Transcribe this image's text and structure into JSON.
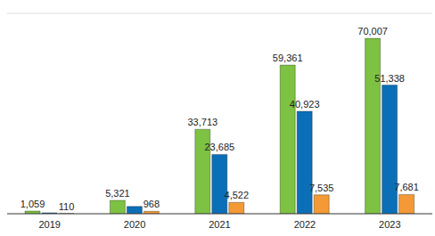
{
  "chart_data": {
    "type": "bar",
    "categories": [
      "2019",
      "2020",
      "2021",
      "2022",
      "2023"
    ],
    "series": [
      {
        "color": "#7dc242",
        "values": [
          1059,
          5321,
          33713,
          59361,
          70007
        ],
        "value_labels": [
          "1,059",
          "5,321",
          "33,713",
          "59,361",
          "70,007"
        ]
      },
      {
        "color": "#0b6fb8",
        "values": [
          400,
          2900,
          23685,
          40923,
          51338
        ],
        "value_labels": [
          null,
          null,
          "23,685",
          "40,923",
          "51,338"
        ]
      },
      {
        "color": "#f39a36",
        "values": [
          110,
          968,
          4522,
          7535,
          7681
        ],
        "value_labels": [
          "110",
          "968",
          "4,522",
          "7,535",
          "7,681"
        ]
      }
    ],
    "ylim": [
      0,
      80000
    ],
    "yticks": [
      0,
      10000,
      20000,
      30000,
      40000,
      50000,
      60000,
      70000,
      80000
    ],
    "grid": true,
    "data_labels": true,
    "tick_labels": "x"
  }
}
